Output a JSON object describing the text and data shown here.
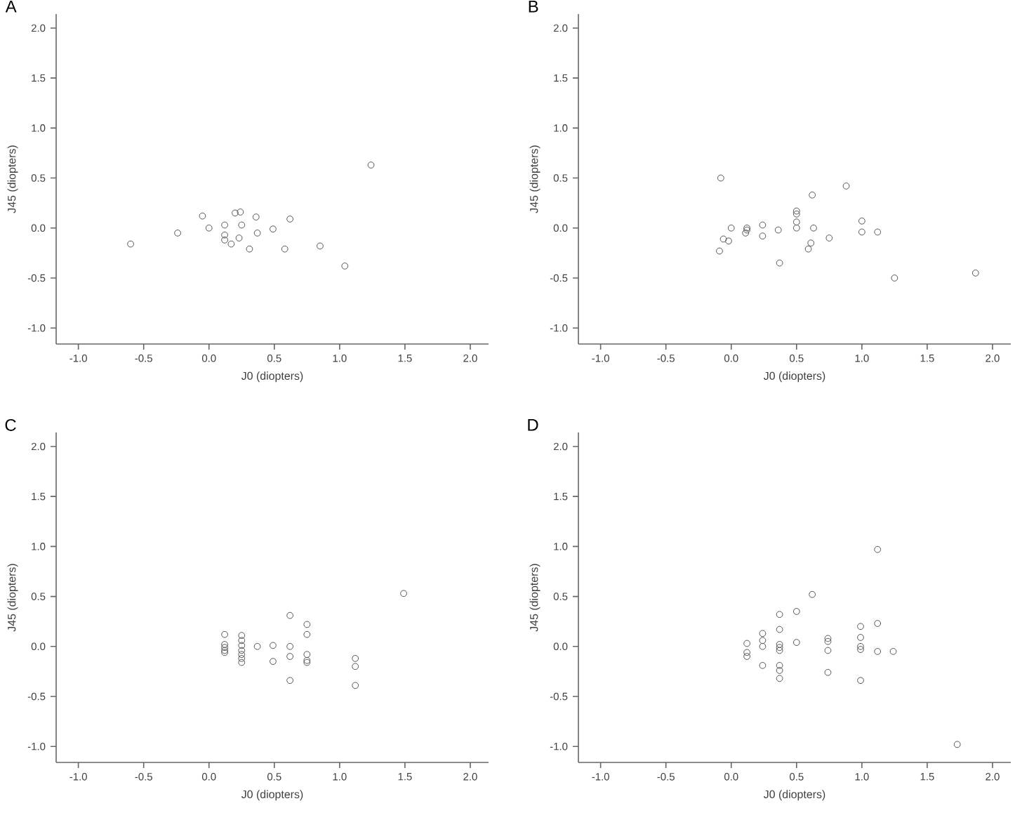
{
  "chart_data": [
    {
      "type": "scatter",
      "title": "A",
      "xlabel": "J0 (diopters)",
      "ylabel": "J45 (diopters)",
      "marker": "circle",
      "xlim": [
        -1.17,
        2.14
      ],
      "ylim": [
        -1.16,
        2.14
      ],
      "xticks": [
        {
          "value": -1,
          "label": "-1.0"
        },
        {
          "value": -0.5,
          "label": "-0.5"
        },
        {
          "value": 0,
          "label": "0.0"
        },
        {
          "value": 0.5,
          "label": "0.5"
        },
        {
          "value": 1,
          "label": "1.0"
        },
        {
          "value": 1.5,
          "label": "1.5"
        },
        {
          "value": 2,
          "label": "2.0"
        }
      ],
      "yticks": [
        {
          "value": -1,
          "label": "-1.0"
        },
        {
          "value": -0.5,
          "label": "-0.5"
        },
        {
          "value": 0,
          "label": "0.0"
        },
        {
          "value": 0.5,
          "label": "0.5"
        },
        {
          "value": 1,
          "label": "1.0"
        },
        {
          "value": 1.5,
          "label": "1.5"
        },
        {
          "value": 2,
          "label": "2.0"
        }
      ],
      "series": [
        {
          "color": "#555555",
          "x": [
            -0.6,
            -0.24,
            -0.05,
            0.0,
            0.12,
            0.12,
            0.12,
            0.17,
            0.2,
            0.24,
            0.23,
            0.25,
            0.31,
            0.36,
            0.37,
            0.49,
            0.58,
            0.62,
            0.85,
            1.04,
            1.24
          ],
          "values": [
            -0.16,
            -0.05,
            0.12,
            0.0,
            0.03,
            -0.07,
            -0.12,
            -0.16,
            0.15,
            0.16,
            -0.1,
            0.03,
            -0.21,
            0.11,
            -0.05,
            -0.01,
            -0.21,
            0.09,
            -0.18,
            -0.38,
            0.63
          ]
        }
      ]
    },
    {
      "type": "scatter",
      "title": "B",
      "xlabel": "J0 (diopters)",
      "ylabel": "J45 (diopters)",
      "marker": "circle",
      "xlim": [
        -1.17,
        2.14
      ],
      "ylim": [
        -1.16,
        2.14
      ],
      "xticks": [
        {
          "value": -1,
          "label": "-1.0"
        },
        {
          "value": -0.5,
          "label": "-0.5"
        },
        {
          "value": 0,
          "label": "0.0"
        },
        {
          "value": 0.5,
          "label": "0.5"
        },
        {
          "value": 1,
          "label": "1.0"
        },
        {
          "value": 1.5,
          "label": "1.5"
        },
        {
          "value": 2,
          "label": "2.0"
        }
      ],
      "yticks": [
        {
          "value": -1,
          "label": "-1.0"
        },
        {
          "value": -0.5,
          "label": "-0.5"
        },
        {
          "value": 0,
          "label": "0.0"
        },
        {
          "value": 0.5,
          "label": "0.5"
        },
        {
          "value": 1,
          "label": "1.0"
        },
        {
          "value": 1.5,
          "label": "1.5"
        },
        {
          "value": 2,
          "label": "2.0"
        }
      ],
      "series": [
        {
          "color": "#555555",
          "x": [
            -0.08,
            -0.09,
            -0.06,
            -0.02,
            0.0,
            0.12,
            0.11,
            0.12,
            0.24,
            0.24,
            0.36,
            0.37,
            0.5,
            0.5,
            0.5,
            0.5,
            0.62,
            0.63,
            0.61,
            0.59,
            0.75,
            0.88,
            1.0,
            1.0,
            1.12,
            1.25,
            1.87
          ],
          "values": [
            0.5,
            -0.23,
            -0.11,
            -0.13,
            0.0,
            0.0,
            -0.05,
            -0.02,
            0.03,
            -0.08,
            -0.02,
            -0.35,
            0.17,
            0.14,
            0.06,
            0.0,
            0.33,
            0.0,
            -0.15,
            -0.21,
            -0.1,
            0.42,
            0.07,
            -0.04,
            -0.04,
            -0.5,
            -0.45
          ]
        }
      ]
    },
    {
      "type": "scatter",
      "title": "C",
      "xlabel": "J0 (diopters)",
      "ylabel": "J45 (diopters)",
      "marker": "circle",
      "xlim": [
        -1.17,
        2.14
      ],
      "ylim": [
        -1.16,
        2.14
      ],
      "xticks": [
        {
          "value": -1,
          "label": "-1.0"
        },
        {
          "value": -0.5,
          "label": "-0.5"
        },
        {
          "value": 0,
          "label": "0.0"
        },
        {
          "value": 0.5,
          "label": "0.5"
        },
        {
          "value": 1,
          "label": "1.0"
        },
        {
          "value": 1.5,
          "label": "1.5"
        },
        {
          "value": 2,
          "label": "2.0"
        }
      ],
      "yticks": [
        {
          "value": -1,
          "label": "-1.0"
        },
        {
          "value": -0.5,
          "label": "-0.5"
        },
        {
          "value": 0,
          "label": "0.0"
        },
        {
          "value": 0.5,
          "label": "0.5"
        },
        {
          "value": 1,
          "label": "1.0"
        },
        {
          "value": 1.5,
          "label": "1.5"
        },
        {
          "value": 2,
          "label": "2.0"
        }
      ],
      "series": [
        {
          "color": "#555555",
          "x": [
            0.12,
            0.12,
            0.12,
            0.12,
            0.12,
            0.25,
            0.25,
            0.25,
            0.25,
            0.25,
            0.25,
            0.25,
            0.37,
            0.49,
            0.49,
            0.62,
            0.62,
            0.62,
            0.62,
            0.75,
            0.75,
            0.75,
            0.75,
            0.75,
            1.12,
            1.12,
            1.12,
            1.49
          ],
          "values": [
            0.12,
            0.02,
            -0.01,
            -0.04,
            -0.06,
            0.11,
            0.06,
            0.01,
            -0.04,
            -0.08,
            -0.12,
            -0.16,
            0.0,
            0.01,
            -0.15,
            0.31,
            0.0,
            -0.1,
            -0.34,
            0.22,
            0.12,
            -0.08,
            -0.14,
            -0.16,
            -0.12,
            -0.2,
            -0.39,
            0.53
          ]
        }
      ]
    },
    {
      "type": "scatter",
      "title": "D",
      "xlabel": "J0 (diopters)",
      "ylabel": "J45 (diopters)",
      "marker": "circle",
      "xlim": [
        -1.17,
        2.14
      ],
      "ylim": [
        -1.16,
        2.14
      ],
      "xticks": [
        {
          "value": -1,
          "label": "-1.0"
        },
        {
          "value": -0.5,
          "label": "-0.5"
        },
        {
          "value": 0,
          "label": "0.0"
        },
        {
          "value": 0.5,
          "label": "0.5"
        },
        {
          "value": 1,
          "label": "1.0"
        },
        {
          "value": 1.5,
          "label": "1.5"
        },
        {
          "value": 2,
          "label": "2.0"
        }
      ],
      "yticks": [
        {
          "value": -1,
          "label": "-1.0"
        },
        {
          "value": -0.5,
          "label": "-0.5"
        },
        {
          "value": 0,
          "label": "0.0"
        },
        {
          "value": 0.5,
          "label": "0.5"
        },
        {
          "value": 1,
          "label": "1.0"
        },
        {
          "value": 1.5,
          "label": "1.5"
        },
        {
          "value": 2,
          "label": "2.0"
        }
      ],
      "series": [
        {
          "color": "#555555",
          "x": [
            0.12,
            0.12,
            0.12,
            0.24,
            0.24,
            0.24,
            0.24,
            0.37,
            0.37,
            0.37,
            0.37,
            0.37,
            0.37,
            0.37,
            0.37,
            0.5,
            0.5,
            0.62,
            0.74,
            0.74,
            0.74,
            0.74,
            0.99,
            0.99,
            0.99,
            0.99,
            0.99,
            1.12,
            1.12,
            1.12,
            1.24,
            1.73
          ],
          "values": [
            0.03,
            -0.06,
            -0.1,
            0.13,
            0.06,
            0.0,
            -0.19,
            0.32,
            0.17,
            0.02,
            -0.01,
            -0.04,
            -0.19,
            -0.24,
            -0.32,
            0.35,
            0.04,
            0.52,
            0.08,
            0.05,
            -0.04,
            -0.26,
            0.2,
            0.09,
            0.0,
            -0.03,
            -0.34,
            0.97,
            0.23,
            -0.05,
            -0.05,
            -0.98
          ]
        }
      ]
    }
  ]
}
